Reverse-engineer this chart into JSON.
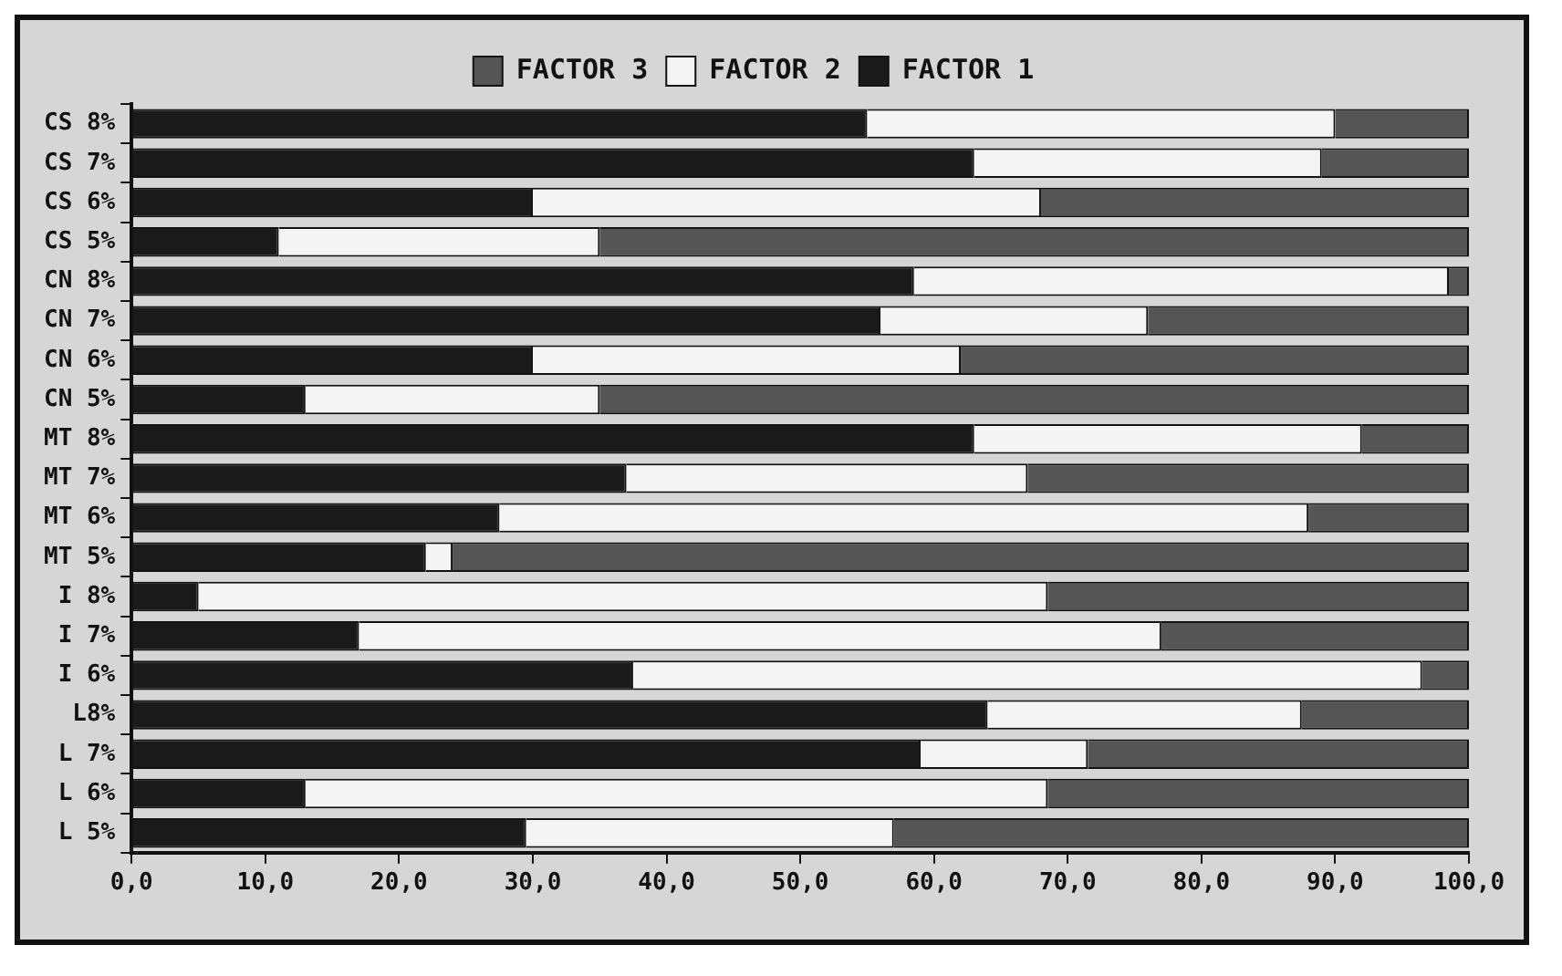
{
  "chart_data": {
    "type": "bar",
    "orientation": "horizontal",
    "stacked": true,
    "legend": "top",
    "categories": [
      "CS 8%",
      "CS 7%",
      "CS 6%",
      "CS 5%",
      "CN 8%",
      "CN 7%",
      "CN 6%",
      "CN 5%",
      "MT 8%",
      "MT 7%",
      "MT 6%",
      "MT 5%",
      "I 8%",
      "I 7%",
      "I 6%",
      "L8%",
      "L 7%",
      "L 6%",
      "L 5%"
    ],
    "series": [
      {
        "name": "FACTOR 1",
        "color": "#1a1a1a",
        "values": [
          55,
          63,
          30,
          11,
          58.5,
          56,
          30,
          13,
          63,
          37,
          27.5,
          22,
          5,
          17,
          37.5,
          64,
          59,
          13,
          29.5
        ]
      },
      {
        "name": "FACTOR 2",
        "color": "#f4f4f4",
        "values": [
          35,
          26,
          38,
          24,
          40,
          20,
          32,
          22,
          29,
          30,
          60.5,
          2,
          63.5,
          60,
          59,
          23.5,
          12.5,
          55.5,
          27.5
        ]
      },
      {
        "name": "FACTOR 3",
        "color": "#555555",
        "values": [
          10,
          11,
          32,
          65,
          1.5,
          24,
          38,
          65,
          8,
          33,
          12,
          76,
          31.5,
          23,
          3.5,
          12.5,
          28.5,
          31.5,
          43
        ]
      }
    ],
    "xlim": [
      0,
      100
    ],
    "xticks": [
      {
        "value": 0,
        "label": "0,0"
      },
      {
        "value": 10,
        "label": "10,0"
      },
      {
        "value": 20,
        "label": "20,0"
      },
      {
        "value": 30,
        "label": "30,0"
      },
      {
        "value": 40,
        "label": "40,0"
      },
      {
        "value": 50,
        "label": "50,0"
      },
      {
        "value": 60,
        "label": "60,0"
      },
      {
        "value": 70,
        "label": "70,0"
      },
      {
        "value": 80,
        "label": "80,0"
      },
      {
        "value": 90,
        "label": "90,0"
      },
      {
        "value": 100,
        "label": "100,0"
      }
    ],
    "grid": false
  }
}
